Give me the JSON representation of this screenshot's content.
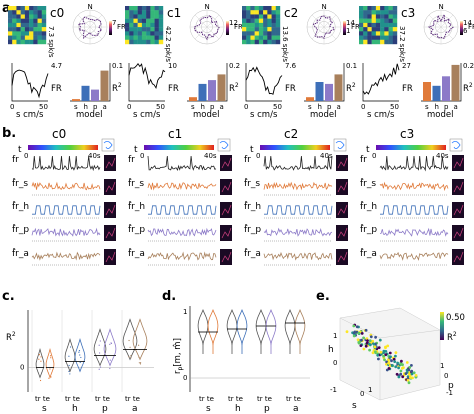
{
  "panels": {
    "a": "a.",
    "b": "b.",
    "c": "c.",
    "d": "d.",
    "e": "e."
  },
  "cells": [
    {
      "name": "c0",
      "peak_rate": "7.3 spk/s",
      "polar_max": "7",
      "fr_max": "4.7",
      "r2_max": "0.1",
      "r2": {
        "s": 0.005,
        "h": 0.04,
        "p": 0.03,
        "a": 0.08
      }
    },
    {
      "name": "c1",
      "peak_rate": "42.2 spk/s",
      "polar_max": "12",
      "fr_max": "10",
      "r2_max": "0.2",
      "r2": {
        "s": 0.02,
        "h": 0.09,
        "p": 0.11,
        "a": 0.14
      }
    },
    {
      "name": "c2",
      "peak_rate": "13.6 spk/s",
      "polar_max": "14",
      "polar_min": "1",
      "fr_max": "7.6",
      "r2_max": "0.1",
      "r2": {
        "s": 0.01,
        "h": 0.05,
        "p": 0.045,
        "a": 0.07
      }
    },
    {
      "name": "c3",
      "peak_rate": "37.2 spk/s",
      "polar_max": "14",
      "polar_min": "6",
      "fr_max": "27",
      "r2_max": "0.2",
      "r2": {
        "s": 0.1,
        "h": 0.08,
        "p": 0.13,
        "a": 0.19
      }
    }
  ],
  "panel_a": {
    "compass": "N",
    "fr_label": "FR",
    "r2_label": "R",
    "r2_sup": "2",
    "speed_label": "s cm/s",
    "speed_ticks": [
      "0",
      "50"
    ],
    "model_label": "model",
    "model_ticks": [
      "s",
      "h",
      "p",
      "a"
    ]
  },
  "panel_b": {
    "time_label": "t",
    "time_start": "0",
    "time_end": "40s",
    "row_labels": [
      "fr",
      "f̂r_s",
      "f̂r_h",
      "f̂r_p",
      "f̂r_a"
    ]
  },
  "panel_c": {
    "ylabel": "R",
    "ylabel_sup": "2",
    "ytick": "0",
    "group_ticks": [
      "tr te",
      "tr te",
      "tr te",
      "tr te"
    ],
    "models": [
      "s",
      "h",
      "p",
      "a"
    ]
  },
  "panel_d": {
    "ylabel": "r",
    "ylabel_sub": "p",
    "ylabel_args": "[m, m̂]",
    "ytick_top": "1",
    "ytick_mid": "0",
    "group_ticks": [
      "tr te",
      "tr te",
      "tr te",
      "tr te"
    ],
    "models": [
      "s",
      "h",
      "p",
      "a"
    ]
  },
  "panel_e": {
    "axis_labels": {
      "s": "s",
      "h": "h",
      "p": "p"
    },
    "ticks": [
      "1",
      "0",
      "-1",
      "0",
      "1",
      "1",
      "0",
      "-1"
    ],
    "colorbar_max": "0.50",
    "colorbar_label": "R",
    "colorbar_sup": "2"
  },
  "colors": {
    "s": "#e07a3a",
    "h": "#3d6fb8",
    "p": "#8c7ac8",
    "a": "#a8805c",
    "fr": "#222222"
  }
}
